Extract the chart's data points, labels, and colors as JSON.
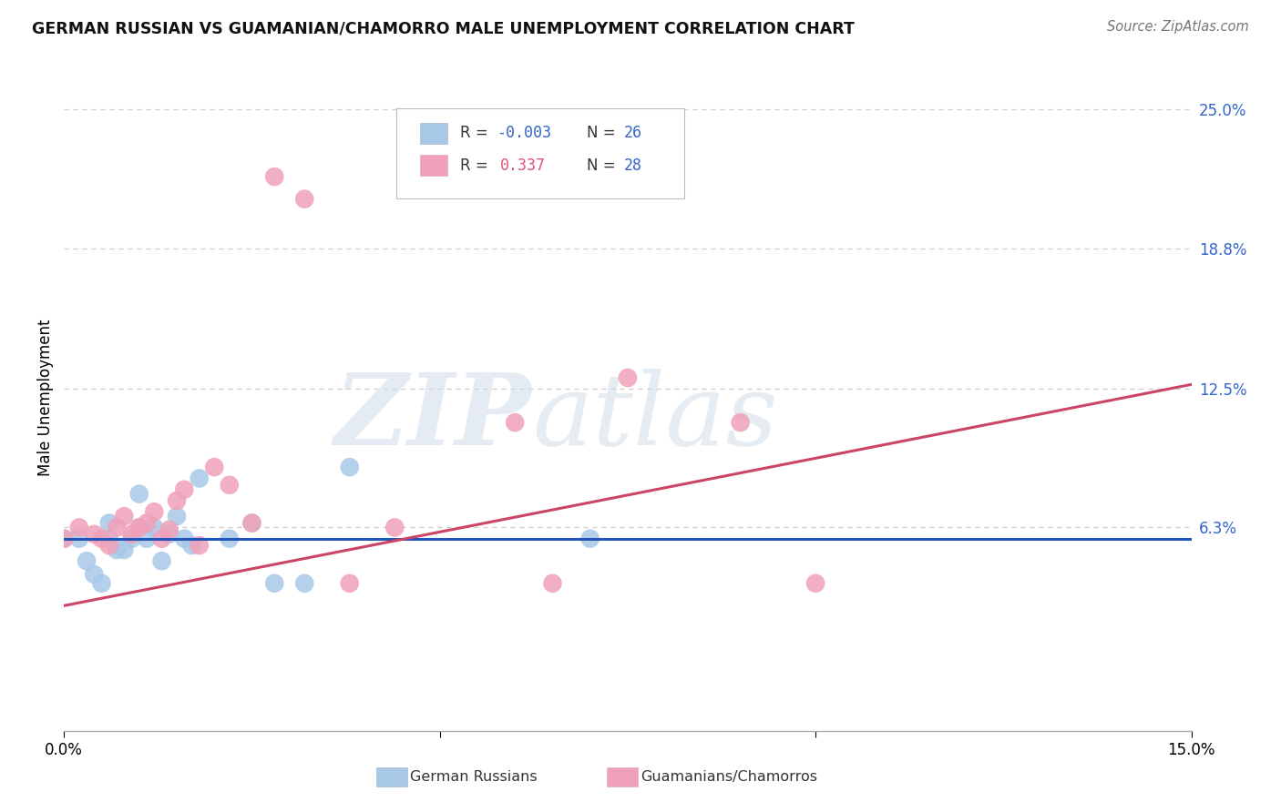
{
  "title": "GERMAN RUSSIAN VS GUAMANIAN/CHAMORRO MALE UNEMPLOYMENT CORRELATION CHART",
  "source": "Source: ZipAtlas.com",
  "ylabel": "Male Unemployment",
  "xlim": [
    0.0,
    0.15
  ],
  "ylim": [
    -0.028,
    0.27
  ],
  "ytick_vals": [
    0.063,
    0.125,
    0.188,
    0.25
  ],
  "ytick_labels": [
    "6.3%",
    "12.5%",
    "18.8%",
    "25.0%"
  ],
  "xtick_vals": [
    0.0,
    0.05,
    0.1,
    0.15
  ],
  "xtick_labels": [
    "0.0%",
    "",
    "",
    "15.0%"
  ],
  "watermark_zip": "ZIP",
  "watermark_atlas": "atlas",
  "color_blue": "#a8c8e8",
  "color_pink": "#f0a0b8",
  "line_blue": "#2255bb",
  "line_pink": "#cc4466",
  "color_r_blue": "#3366cc",
  "color_r_pink": "#dd5577",
  "color_n": "#3366cc",
  "background_color": "#ffffff",
  "grid_color": "#cccccc",
  "blue_x": [
    0.0,
    0.002,
    0.003,
    0.004,
    0.005,
    0.006,
    0.006,
    0.007,
    0.008,
    0.009,
    0.01,
    0.01,
    0.011,
    0.012,
    0.013,
    0.014,
    0.015,
    0.016,
    0.017,
    0.018,
    0.022,
    0.025,
    0.028,
    0.032,
    0.038,
    0.07
  ],
  "blue_y": [
    0.058,
    0.058,
    0.048,
    0.042,
    0.038,
    0.058,
    0.065,
    0.053,
    0.053,
    0.058,
    0.063,
    0.078,
    0.058,
    0.063,
    0.048,
    0.06,
    0.068,
    0.058,
    0.055,
    0.085,
    0.058,
    0.065,
    0.038,
    0.038,
    0.09,
    0.058
  ],
  "pink_x": [
    0.0,
    0.002,
    0.004,
    0.005,
    0.006,
    0.007,
    0.008,
    0.009,
    0.01,
    0.011,
    0.012,
    0.013,
    0.014,
    0.015,
    0.016,
    0.018,
    0.02,
    0.022,
    0.025,
    0.028,
    0.032,
    0.038,
    0.044,
    0.06,
    0.065,
    0.075,
    0.09,
    0.1
  ],
  "pink_y": [
    0.058,
    0.063,
    0.06,
    0.058,
    0.055,
    0.063,
    0.068,
    0.06,
    0.063,
    0.065,
    0.07,
    0.058,
    0.062,
    0.075,
    0.08,
    0.055,
    0.09,
    0.082,
    0.065,
    0.22,
    0.21,
    0.038,
    0.063,
    0.11,
    0.038,
    0.13,
    0.11,
    0.038
  ],
  "blue_line_x": [
    0.0,
    0.15
  ],
  "blue_line_y": [
    0.058,
    0.058
  ],
  "pink_line_x": [
    0.0,
    0.15
  ],
  "pink_line_y": [
    0.028,
    0.127
  ]
}
